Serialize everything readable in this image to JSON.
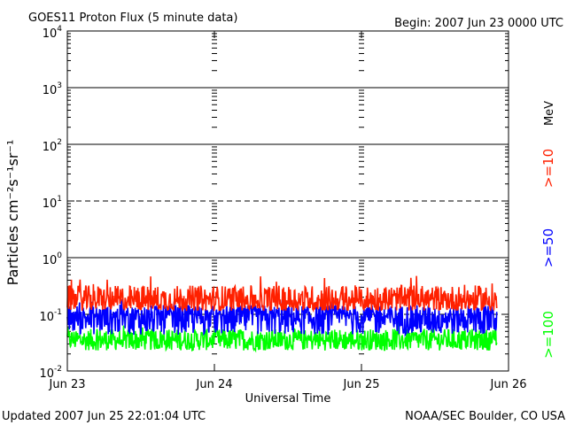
{
  "chart_data": {
    "type": "line",
    "title": "GOES11 Proton Flux (5 minute data)",
    "begin_label": "Begin: 2007 Jun 23 0000 UTC",
    "xlabel": "Universal Time",
    "ylabel": "Particles cm⁻²s⁻¹sr⁻¹",
    "x_ticks": [
      "Jun 23",
      "Jun 24",
      "Jun 25",
      "Jun 26"
    ],
    "xlim_days": [
      0,
      3
    ],
    "data_end_day": 2.92,
    "y_scale": "log",
    "ylim": [
      0.01,
      10000
    ],
    "y_ticks": [
      {
        "base": "10",
        "exp": "-2"
      },
      {
        "base": "10",
        "exp": "-1"
      },
      {
        "base": "10",
        "exp": "0"
      },
      {
        "base": "10",
        "exp": "1"
      },
      {
        "base": "10",
        "exp": "2"
      },
      {
        "base": "10",
        "exp": "3"
      },
      {
        "base": "10",
        "exp": "4"
      }
    ],
    "units_label": "MeV",
    "series": [
      {
        "name": ">=10",
        "color": "#ff2000",
        "baseline": 0.17,
        "min": 0.11,
        "max": 0.5
      },
      {
        "name": ">=50",
        "color": "#0000ff",
        "baseline": 0.09,
        "min": 0.04,
        "max": 0.2
      },
      {
        "name": ">=100",
        "color": "#00ff00",
        "baseline": 0.035,
        "min": 0.022,
        "max": 0.075
      }
    ],
    "threshold_lines": [
      {
        "value": 10,
        "style": "dashed"
      },
      {
        "value": 0.1,
        "style": "dashed"
      }
    ],
    "grid": "decade lines"
  },
  "footer": {
    "updated": "Updated 2007 Jun 25 22:01:04 UTC",
    "credit": "NOAA/SEC Boulder, CO USA"
  }
}
